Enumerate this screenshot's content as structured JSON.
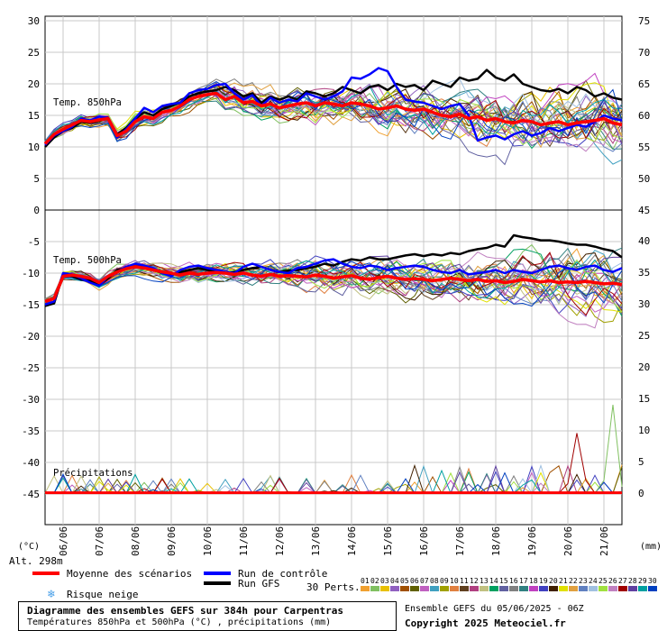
{
  "chart_data": {
    "type": "line",
    "title": "Diagramme des ensembles GEFS sur 384h pour Carpentras",
    "subtitle": "Températures 850hPa et 500hPa (°C) , précipitations (mm)",
    "run_label": "Ensemble GEFS du 05/06/2025 - 06Z",
    "copyright": "Copyright 2025 Meteociel.fr",
    "altitude_label": "Alt. 298m",
    "left_unit": "(°C)",
    "right_unit": "(mm)",
    "panel_labels": {
      "t850": "Temp. 850hPa",
      "t500": "Temp. 500hPa",
      "precip": "Précipitations"
    },
    "x": {
      "start_label": "05/06",
      "step_hours": 6,
      "n_points": 65,
      "date_ticks": [
        "06/06",
        "07/06",
        "08/06",
        "09/06",
        "10/06",
        "11/06",
        "12/06",
        "13/06",
        "14/06",
        "15/06",
        "16/06",
        "17/06",
        "18/06",
        "19/06",
        "20/06",
        "21/06"
      ]
    },
    "axes": {
      "t850_left": {
        "ylim": [
          0,
          30
        ],
        "ticks": [
          "30",
          "25",
          "20",
          "15",
          "10",
          "5",
          "0"
        ]
      },
      "t850_right": {
        "ylim": [
          45,
          75
        ],
        "ticks": [
          "75",
          "70",
          "65",
          "60",
          "55",
          "50",
          "45"
        ]
      },
      "t500_left": {
        "ylim": [
          -45,
          -5
        ],
        "ticks": [
          "-5",
          "-10",
          "-15",
          "-20",
          "-25",
          "-30",
          "-35",
          "-40",
          "-45"
        ]
      },
      "right_lower": {
        "ticks": [
          "40",
          "35",
          "30",
          "25",
          "20",
          "15",
          "10",
          "5",
          "0"
        ]
      }
    },
    "legend": {
      "mean": {
        "label": "Moyenne des scénarios",
        "color": "#ff0000"
      },
      "control": {
        "label": "Run de contrôle",
        "color": "#0000ff"
      },
      "gfs": {
        "label": "Run GFS",
        "color": "#000000"
      },
      "snow": {
        "label": "Risque neige",
        "color": "#4aa0e8"
      },
      "perts_label": "30 Perts.",
      "perts": [
        {
          "n": "01",
          "c": "#f0a030"
        },
        {
          "n": "02",
          "c": "#80c060"
        },
        {
          "n": "03",
          "c": "#e8c000"
        },
        {
          "n": "04",
          "c": "#9060c0"
        },
        {
          "n": "05",
          "c": "#a05000"
        },
        {
          "n": "06",
          "c": "#606000"
        },
        {
          "n": "07",
          "c": "#c060c0"
        },
        {
          "n": "08",
          "c": "#40a0c0"
        },
        {
          "n": "09",
          "c": "#a0a000"
        },
        {
          "n": "10",
          "c": "#e08040"
        },
        {
          "n": "11",
          "c": "#604020"
        },
        {
          "n": "12",
          "c": "#b04080"
        },
        {
          "n": "13",
          "c": "#c0c080"
        },
        {
          "n": "14",
          "c": "#00a060"
        },
        {
          "n": "15",
          "c": "#6060a0"
        },
        {
          "n": "16",
          "c": "#808080"
        },
        {
          "n": "17",
          "c": "#308080"
        },
        {
          "n": "18",
          "c": "#c040c0"
        },
        {
          "n": "19",
          "c": "#4040c0"
        },
        {
          "n": "20",
          "c": "#402000"
        },
        {
          "n": "21",
          "c": "#e0e000"
        },
        {
          "n": "22",
          "c": "#e0a040"
        },
        {
          "n": "23",
          "c": "#6080c0"
        },
        {
          "n": "24",
          "c": "#a0c0e0"
        },
        {
          "n": "25",
          "c": "#a0e040"
        },
        {
          "n": "26",
          "c": "#c080c0"
        },
        {
          "n": "27",
          "c": "#a00000"
        },
        {
          "n": "28",
          "c": "#6040a0"
        },
        {
          "n": "29",
          "c": "#00a0a0"
        },
        {
          "n": "30",
          "c": "#0040c0"
        }
      ]
    },
    "series": [
      {
        "name": "Moyenne des scénarios",
        "t850": [
          10.5,
          12.0,
          12.8,
          13.5,
          14.2,
          14.0,
          14.3,
          14.5,
          11.8,
          12.5,
          14.0,
          14.8,
          14.5,
          15.5,
          15.8,
          16.5,
          17.5,
          18.0,
          18.3,
          18.5,
          17.5,
          18.0,
          17.0,
          17.2,
          16.5,
          16.8,
          16.2,
          16.5,
          16.8,
          17.0,
          16.5,
          17.0,
          16.8,
          16.5,
          17.0,
          16.8,
          16.5,
          16.0,
          16.2,
          16.5,
          16.0,
          15.8,
          16.0,
          15.5,
          15.0,
          14.8,
          15.2,
          14.5,
          14.8,
          14.2,
          14.5,
          14.0,
          13.8,
          14.2,
          14.0,
          13.5,
          13.8,
          14.0,
          13.5,
          13.8,
          14.0,
          14.2,
          14.5,
          13.8,
          13.5
        ],
        "t500": [
          -14.5,
          -14.0,
          -10.5,
          -10.3,
          -10.5,
          -10.8,
          -11.5,
          -10.5,
          -9.8,
          -9.3,
          -9.0,
          -9.2,
          -9.5,
          -9.8,
          -10.0,
          -10.3,
          -10.0,
          -10.2,
          -10.0,
          -9.9,
          -10.0,
          -10.2,
          -10.0,
          -10.3,
          -10.5,
          -10.2,
          -10.5,
          -10.4,
          -10.5,
          -10.6,
          -10.3,
          -10.5,
          -10.8,
          -10.6,
          -10.4,
          -10.8,
          -11.0,
          -10.7,
          -10.5,
          -10.8,
          -11.0,
          -10.9,
          -11.0,
          -11.2,
          -11.0,
          -10.8,
          -11.0,
          -11.2,
          -11.0,
          -11.3,
          -11.2,
          -11.5,
          -11.3,
          -11.0,
          -11.2,
          -11.4,
          -11.2,
          -11.5,
          -11.4,
          -11.5,
          -11.3,
          -11.5,
          -11.7,
          -11.6,
          -11.8
        ]
      },
      {
        "name": "Run de contrôle",
        "t850": [
          10.3,
          11.8,
          12.5,
          13.2,
          14.5,
          14.2,
          14.8,
          14.6,
          11.5,
          12.8,
          14.5,
          16.2,
          15.5,
          16.5,
          16.8,
          17.0,
          18.5,
          19.0,
          19.2,
          19.8,
          20.0,
          18.5,
          17.5,
          18.2,
          16.5,
          17.8,
          17.0,
          17.5,
          17.2,
          18.5,
          18.0,
          17.5,
          18.0,
          18.8,
          21.0,
          20.8,
          21.5,
          22.5,
          22.0,
          19.5,
          17.5,
          17.2,
          17.0,
          16.5,
          16.0,
          16.5,
          16.8,
          15.0,
          11.0,
          11.5,
          11.8,
          11.2,
          12.0,
          12.5,
          11.8,
          12.2,
          13.0,
          12.5,
          13.0,
          13.5,
          13.2,
          14.0,
          15.0,
          14.5,
          14.2
        ],
        "t500": [
          -15.0,
          -14.5,
          -10.0,
          -10.2,
          -10.8,
          -11.5,
          -12.0,
          -10.5,
          -9.8,
          -9.0,
          -8.5,
          -8.8,
          -9.2,
          -10.0,
          -10.5,
          -9.5,
          -9.0,
          -8.8,
          -9.2,
          -9.5,
          -9.8,
          -10.0,
          -9.0,
          -8.5,
          -9.0,
          -9.5,
          -9.8,
          -10.0,
          -9.2,
          -9.0,
          -8.5,
          -8.0,
          -7.8,
          -8.5,
          -9.0,
          -9.2,
          -8.8,
          -9.0,
          -9.5,
          -9.2,
          -9.0,
          -8.8,
          -9.0,
          -9.5,
          -9.8,
          -10.0,
          -9.5,
          -10.2,
          -10.0,
          -9.8,
          -9.5,
          -10.0,
          -9.5,
          -9.8,
          -10.0,
          -9.5,
          -9.0,
          -8.8,
          -9.2,
          -9.5,
          -9.0,
          -8.8,
          -9.5,
          -9.8,
          -9.2
        ]
      },
      {
        "name": "Run GFS",
        "t850": [
          10.0,
          11.5,
          12.5,
          13.0,
          14.0,
          13.8,
          14.2,
          14.5,
          12.0,
          13.0,
          14.5,
          15.5,
          15.0,
          16.0,
          16.5,
          17.0,
          18.0,
          18.5,
          18.8,
          19.0,
          19.5,
          19.0,
          18.0,
          18.5,
          17.0,
          18.0,
          17.5,
          18.0,
          17.5,
          18.8,
          18.5,
          18.0,
          18.5,
          19.5,
          19.0,
          18.5,
          19.5,
          19.8,
          19.0,
          20.0,
          19.5,
          19.8,
          19.0,
          20.5,
          20.0,
          19.5,
          21.0,
          20.5,
          20.8,
          22.2,
          21.0,
          20.5,
          21.5,
          20.0,
          19.5,
          19.0,
          18.8,
          19.2,
          18.5,
          19.5,
          19.0,
          18.0,
          18.5,
          17.8,
          17.5
        ],
        "t500": [
          -15.2,
          -14.8,
          -10.2,
          -10.5,
          -11.0,
          -11.2,
          -11.8,
          -10.8,
          -9.5,
          -9.2,
          -9.0,
          -9.0,
          -9.5,
          -10.0,
          -10.2,
          -9.8,
          -9.5,
          -9.2,
          -9.5,
          -9.8,
          -10.0,
          -9.8,
          -9.5,
          -9.2,
          -9.0,
          -9.5,
          -9.8,
          -9.6,
          -9.5,
          -9.2,
          -9.0,
          -8.5,
          -8.8,
          -8.2,
          -7.8,
          -8.0,
          -7.5,
          -7.8,
          -7.8,
          -7.5,
          -7.2,
          -7.0,
          -7.3,
          -7.0,
          -7.2,
          -6.8,
          -7.0,
          -6.5,
          -6.2,
          -6.0,
          -5.5,
          -5.8,
          -4.0,
          -4.3,
          -4.5,
          -4.8,
          -4.8,
          -5.0,
          -5.3,
          -5.5,
          -5.5,
          -5.8,
          -6.2,
          -6.5,
          -7.5
        ]
      }
    ]
  },
  "bottom_text": {
    "title": "Diagramme des ensembles GEFS sur 384h pour Carpentras",
    "subtitle": "Températures 850hPa et 500hPa (°C) , précipitations (mm)"
  }
}
